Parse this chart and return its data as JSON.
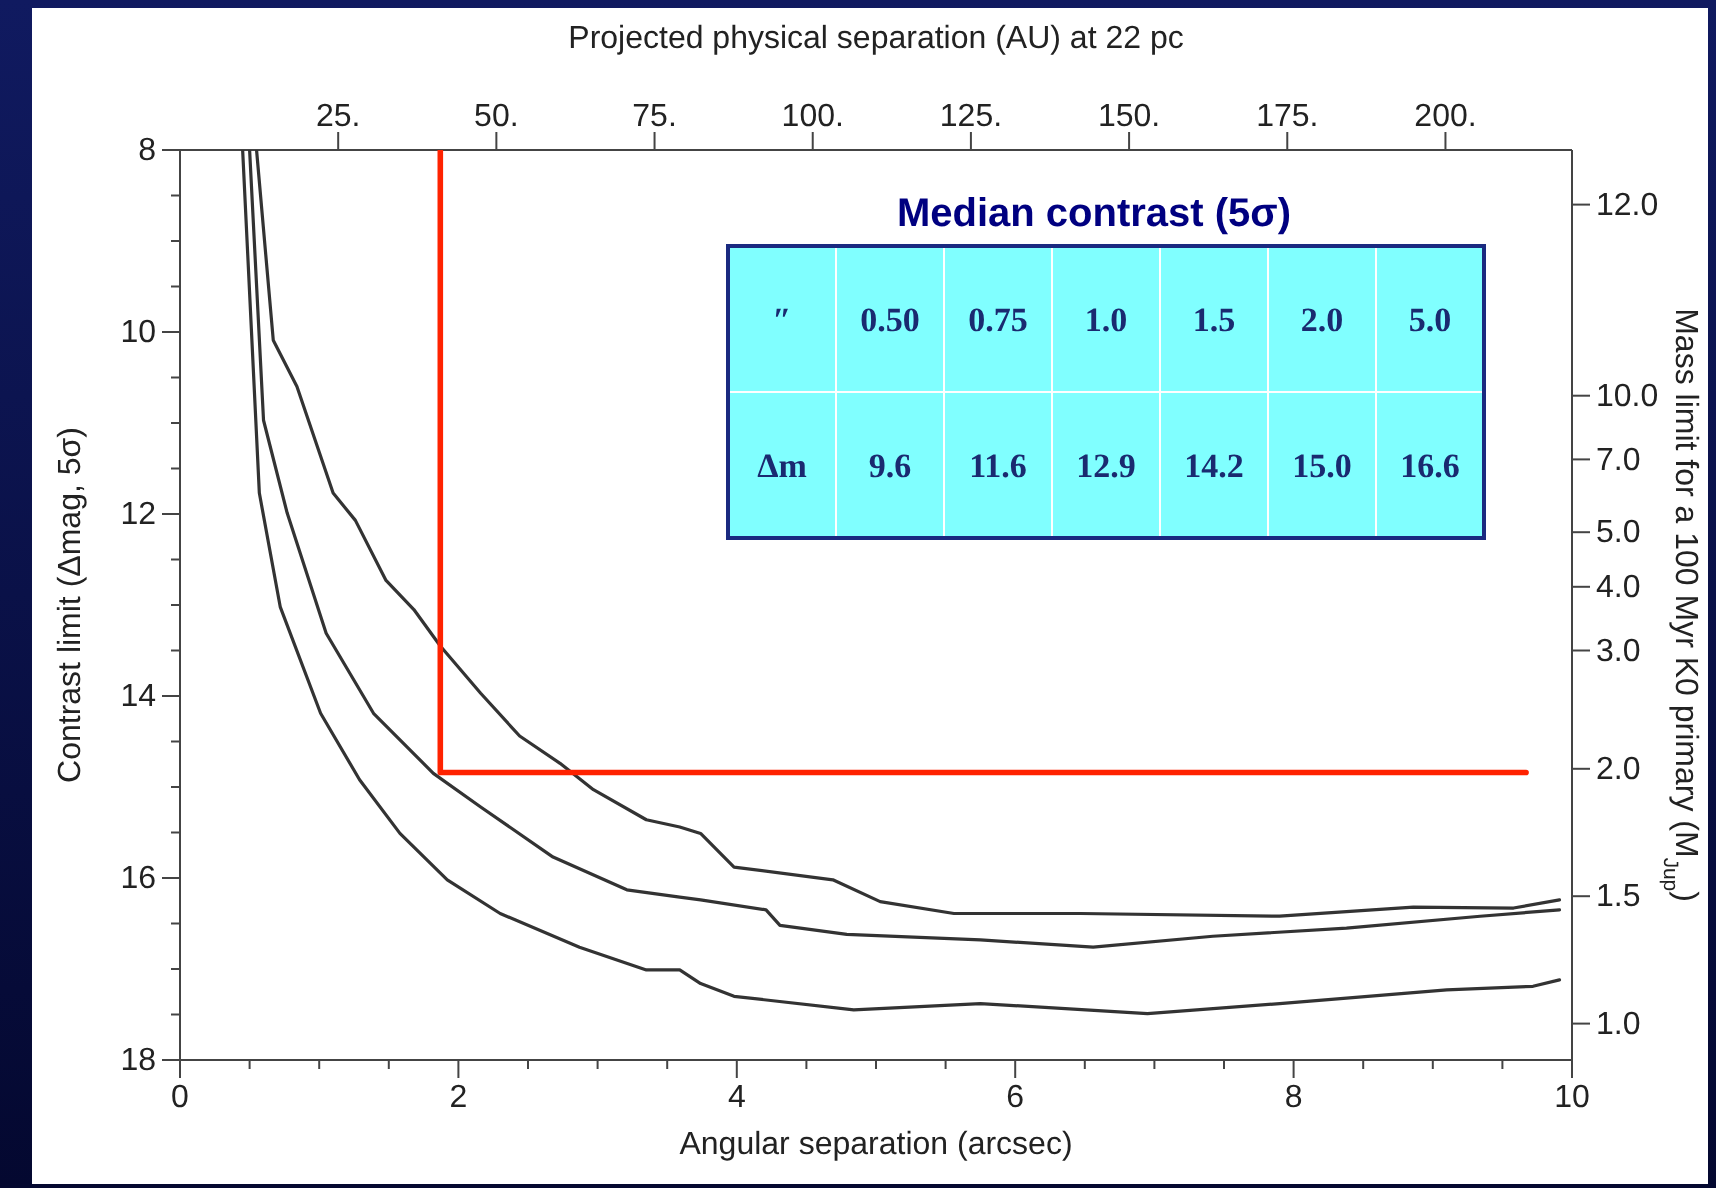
{
  "chart_data": {
    "type": "line",
    "xlabel": "Angular separation (arcsec)",
    "ylabel": "Contrast limit (Δmag, 5σ)",
    "x2label": "Projected physical separation (AU) at 22 pc",
    "y2label": "Mass limit for a 100 Myr K0 primary (M$_{Jup}$)",
    "xlim": [
      0,
      10
    ],
    "xticks": [
      0,
      {
        "value": 0.5,
        "label": null
      },
      {
        "value": 1,
        "label": null
      },
      {
        "value": 1.5,
        "label": null
      },
      2,
      {
        "value": 2.5,
        "label": null
      },
      {
        "value": 3,
        "label": null
      },
      {
        "value": 3.5,
        "label": null
      },
      4,
      {
        "value": 4.5,
        "label": null
      },
      {
        "value": 5,
        "label": null
      },
      {
        "value": 5.5,
        "label": null
      },
      6,
      {
        "value": 6.5,
        "label": null
      },
      {
        "value": 7,
        "label": null
      },
      {
        "value": 7.5,
        "label": null
      },
      8,
      {
        "value": 8.5,
        "label": null
      },
      {
        "value": 9,
        "label": null
      },
      {
        "value": 9.5,
        "label": null
      },
      10
    ],
    "ylim": [
      18,
      8
    ],
    "yticks": [
      8,
      {
        "value": 8.5,
        "label": null
      },
      {
        "value": 9,
        "label": null
      },
      {
        "value": 9.5,
        "label": null
      },
      10,
      {
        "value": 10.5,
        "label": null
      },
      {
        "value": 11,
        "label": null
      },
      {
        "value": 11.5,
        "label": null
      },
      12,
      {
        "value": 12.5,
        "label": null
      },
      {
        "value": 13,
        "label": null
      },
      {
        "value": 13.5,
        "label": null
      },
      14,
      {
        "value": 14.5,
        "label": null
      },
      {
        "value": 15,
        "label": null
      },
      {
        "value": 15.5,
        "label": null
      },
      16,
      {
        "value": 16.5,
        "label": null
      },
      {
        "value": 17,
        "label": null
      },
      {
        "value": 17.5,
        "label": null
      },
      18
    ],
    "x2lim": [
      0,
      220
    ],
    "x2ticks": [
      {
        "value": 25,
        "label": "25."
      },
      {
        "value": 50,
        "label": "50."
      },
      {
        "value": 75,
        "label": "75."
      },
      {
        "value": 100,
        "label": "100."
      },
      {
        "value": 125,
        "label": "125."
      },
      {
        "value": 150,
        "label": "150."
      },
      {
        "value": 175,
        "label": "175."
      },
      {
        "value": 200,
        "label": "200."
      }
    ],
    "y2_categories": [
      null,
      null,
      null,
      null,
      null,
      null,
      "12.0",
      null,
      null,
      null,
      null,
      null,
      null,
      null,
      null,
      null,
      null,
      null,
      null,
      null,
      null,
      null,
      null,
      null,
      null,
      null,
      null,
      "10.0",
      null,
      null,
      null,
      null,
      null,
      null,
      "7.0",
      null,
      null,
      null,
      null,
      null,
      null,
      null,
      "5.0",
      null,
      null,
      null,
      null,
      null,
      "4.0",
      null,
      null,
      null,
      null,
      null,
      null,
      "3.0",
      null,
      null,
      null,
      null,
      null,
      null,
      null,
      null,
      null,
      null,
      null,
      null,
      "2.0",
      null,
      null,
      null,
      null,
      null,
      null,
      null,
      null,
      null,
      null,
      null,
      null,
      null,
      "1.5",
      null,
      null,
      null,
      null,
      null,
      null,
      null,
      null,
      null,
      null,
      null,
      null,
      null,
      "1.0",
      null,
      null,
      null,
      null
    ],
    "series": [
      {
        "color": "#333333",
        "x": [
          0.55,
          0.67,
          0.84,
          1.1,
          1.26,
          1.48,
          1.68,
          1.87,
          2.16,
          2.44,
          2.73,
          2.97,
          3.35,
          3.59,
          3.74,
          3.98,
          4.69,
          5.03,
          5.56,
          6.47,
          7.9,
          8.86,
          9.58,
          9.91
        ],
        "values": [
          8,
          10.09,
          10.6,
          11.77,
          12.07,
          12.73,
          13.05,
          13.45,
          13.97,
          14.44,
          14.74,
          15.03,
          15.36,
          15.44,
          15.51,
          15.88,
          16.02,
          16.26,
          16.39,
          16.39,
          16.42,
          16.32,
          16.33,
          16.24
        ]
      },
      {
        "color": "#333333",
        "x": [
          0.5,
          0.6,
          0.77,
          1.05,
          1.39,
          1.82,
          2.16,
          2.68,
          3.21,
          3.59,
          3.74,
          4.21,
          4.31,
          4.79,
          5.75,
          6.56,
          7.42,
          8.38,
          9.34,
          9.91
        ],
        "values": [
          8,
          10.97,
          11.99,
          13.31,
          14.19,
          14.85,
          15.22,
          15.77,
          16.13,
          16.21,
          16.24,
          16.35,
          16.52,
          16.62,
          16.68,
          16.76,
          16.64,
          16.55,
          16.42,
          16.35
        ]
      },
      {
        "color": "#333333",
        "x": [
          0.45,
          0.57,
          0.72,
          1.01,
          1.29,
          1.58,
          1.92,
          2.3,
          2.87,
          3.35,
          3.59,
          3.74,
          3.98,
          4.84,
          5.75,
          6.95,
          7.9,
          9.1,
          9.72,
          9.91
        ],
        "values": [
          8,
          11.77,
          13.02,
          14.19,
          14.92,
          15.51,
          16.02,
          16.39,
          16.76,
          17.01,
          17.01,
          17.16,
          17.3,
          17.45,
          17.38,
          17.49,
          17.38,
          17.23,
          17.19,
          17.12
        ]
      },
      {
        "color": "#ff2200",
        "x": [
          1.87,
          1.87,
          9.67
        ],
        "values": [
          8,
          14.84,
          14.84
        ]
      }
    ],
    "annotations": [
      "Median contrast (5σ)",
      "″",
      "0.50",
      "0.75",
      "1.0",
      "1.5",
      "2.0",
      "5.0",
      "Δm",
      "9.6",
      "11.6",
      "12.9",
      "14.2",
      "15.0",
      "16.6"
    ],
    "grid": false
  }
}
